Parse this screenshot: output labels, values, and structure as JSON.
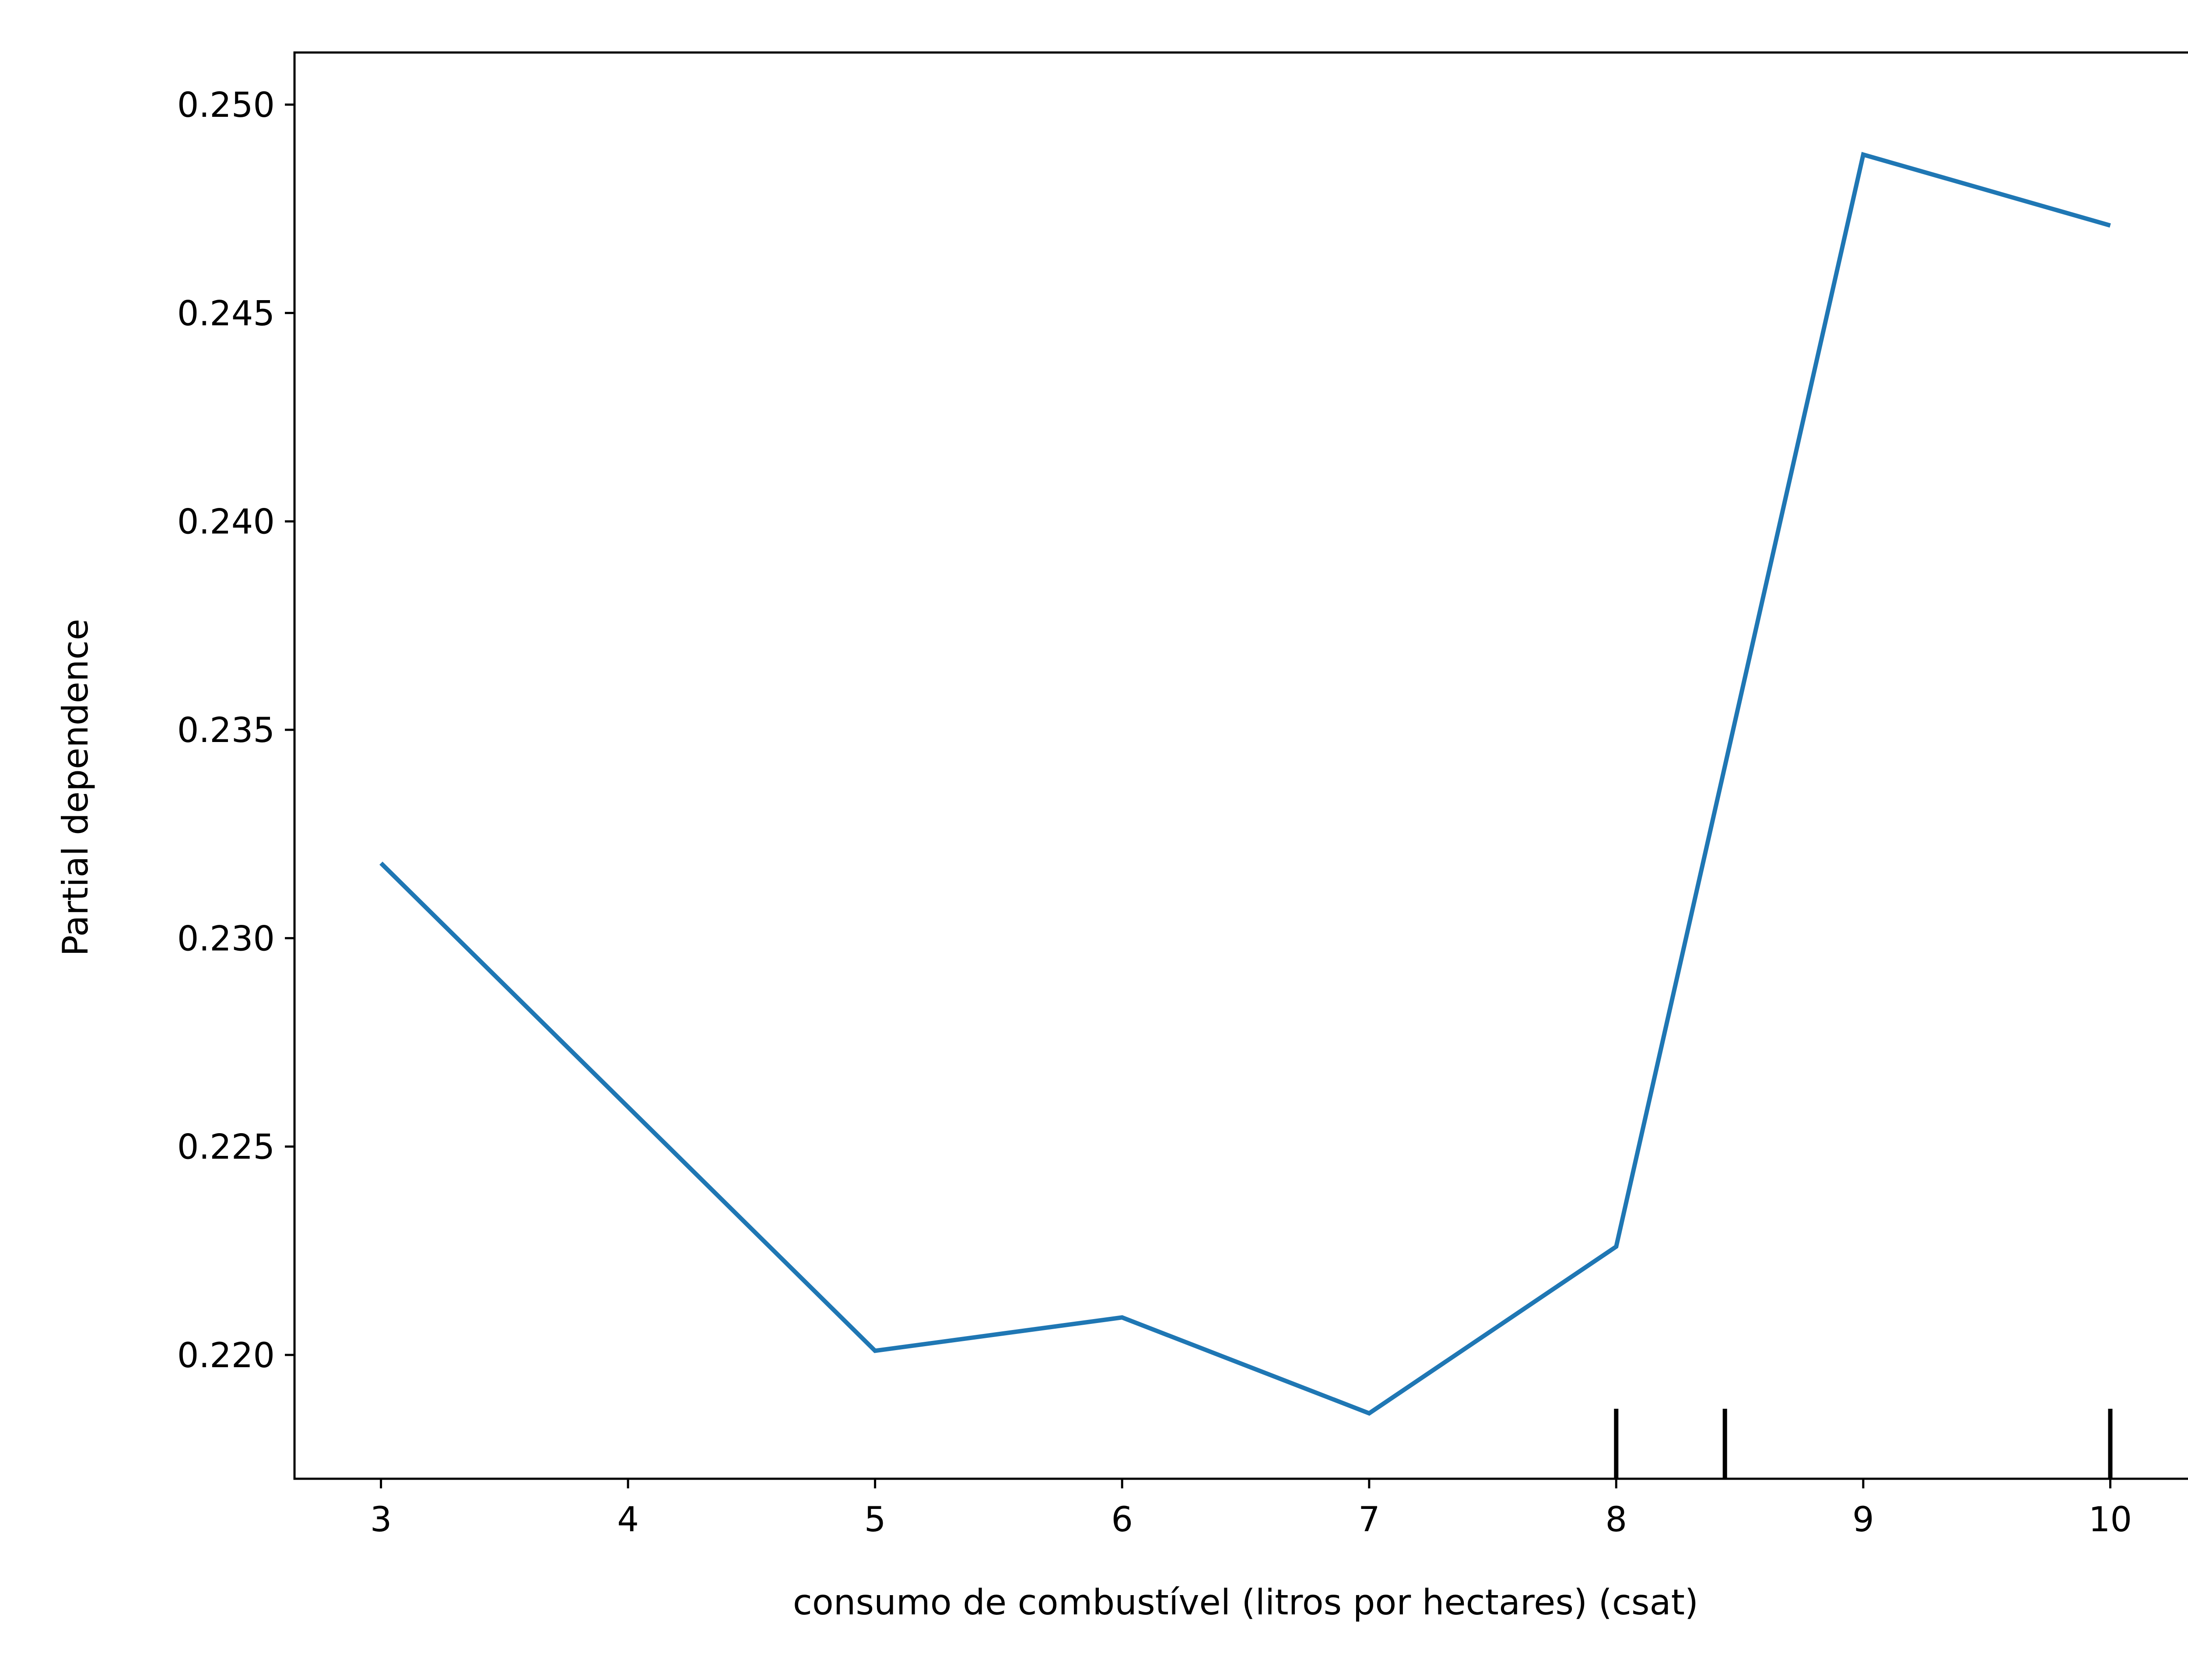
{
  "chart_data": {
    "type": "line",
    "title": "",
    "xlabel": "consumo de combustível (litros por hectares) (csat)",
    "ylabel": "Partial dependence",
    "xlim": [
      2.65,
      10.35
    ],
    "ylim": [
      0.21703,
      0.25125
    ],
    "x_ticks": [
      3,
      4,
      5,
      6,
      7,
      8,
      9,
      10
    ],
    "x_tick_labels": [
      "3",
      "4",
      "5",
      "6",
      "7",
      "8",
      "9",
      "10"
    ],
    "y_ticks": [
      0.22,
      0.225,
      0.23,
      0.235,
      0.24,
      0.245,
      0.25
    ],
    "y_tick_labels": [
      "0.220",
      "0.225",
      "0.230",
      "0.235",
      "0.240",
      "0.245",
      "0.250"
    ],
    "grid": false,
    "series": [
      {
        "color": "#1f77b4",
        "x": [
          3,
          5,
          6,
          7,
          8,
          9,
          10
        ],
        "y": [
          0.2318,
          0.2201,
          0.2209,
          0.2186,
          0.2226,
          0.2488,
          0.2471
        ]
      }
    ],
    "rug_marks": {
      "color": "#000000",
      "x": [
        8.0,
        8.44,
        10.0
      ]
    }
  }
}
